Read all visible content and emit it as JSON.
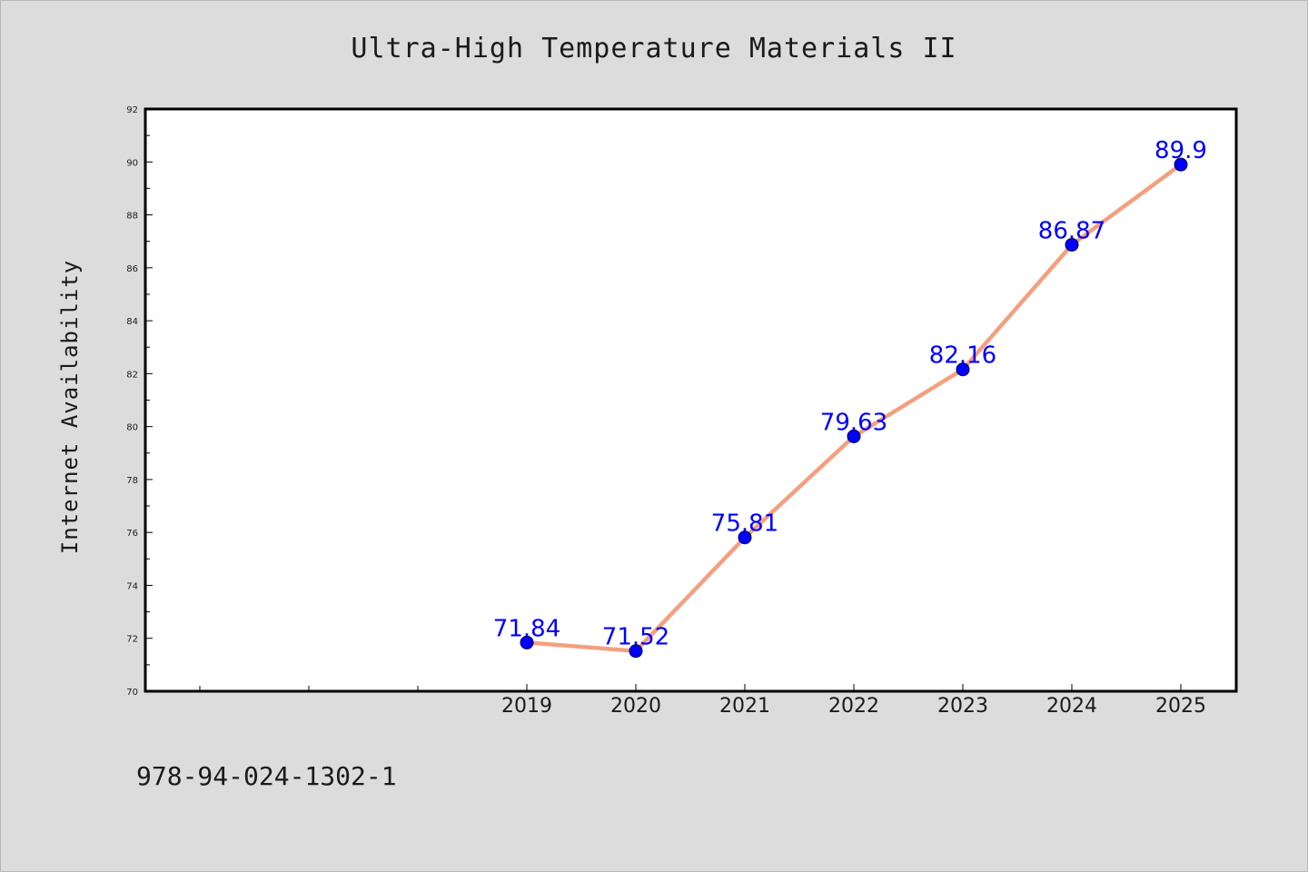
{
  "chart_data": {
    "type": "line",
    "title": "Ultra-High Temperature Materials II",
    "ylabel": "Internet Availability",
    "xlabel": "",
    "categories": [
      "2019",
      "2020",
      "2021",
      "2022",
      "2023",
      "2024",
      "2025"
    ],
    "series": [
      {
        "values": [
          71.84,
          71.52,
          75.81,
          79.63,
          82.16,
          86.87,
          89.9
        ],
        "labels": [
          "71.84",
          "71.52",
          "75.81",
          "79.63",
          "82.16",
          "86.87",
          "89.9"
        ]
      }
    ],
    "ylim": [
      70,
      92
    ],
    "yticks": [
      "70",
      "72",
      "74",
      "76",
      "78",
      "80",
      "82",
      "84",
      "86",
      "88",
      "90",
      "92"
    ],
    "grid": false,
    "legend": "none",
    "colors": {
      "line": "#f4a07e",
      "marker": "#0000ff",
      "label": "#0000ff",
      "plot_bg": "#ffffff",
      "page_bg": "#dcdcdc"
    }
  },
  "footer": {
    "isbn": "978-94-024-1302-1"
  }
}
